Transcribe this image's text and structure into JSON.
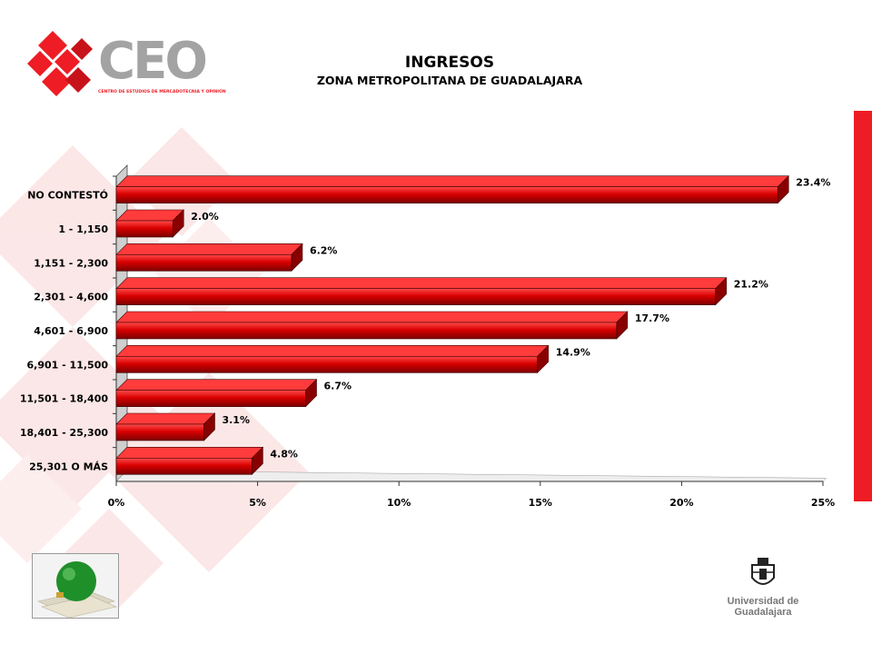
{
  "slide": {
    "title": "INGRESOS",
    "subtitle": "ZONA METROPOLITANA DE GUADALAJARA",
    "logo_letters": "CEO",
    "logo_tagline": "CENTRO DE ESTUDIOS DE MERCADOTECNIA Y OPINIÓN",
    "university": "Universidad de Guadalajara"
  },
  "colors": {
    "bar": "#d90000",
    "bar_top": "#ff3b3b",
    "bar_side": "#8a0000",
    "accent": "#ee1c24",
    "logo_gray": "#9a9a9a"
  },
  "chart_data": {
    "type": "bar",
    "orientation": "horizontal",
    "categories": [
      "NO CONTESTÓ",
      "1 - 1,150",
      "1,151 - 2,300",
      "2,301 - 4,600",
      "4,601 - 6,900",
      "6,901 - 11,500",
      "11,501 - 18,400",
      "18,401 - 25,300",
      "25,301 O MÁS"
    ],
    "values": [
      23.4,
      2.0,
      6.2,
      21.2,
      17.7,
      14.9,
      6.7,
      3.1,
      4.8
    ],
    "value_labels": [
      "23.4%",
      "2.0%",
      "6.2%",
      "21.2%",
      "17.7%",
      "14.9%",
      "6.7%",
      "3.1%",
      "4.8%"
    ],
    "xlim": [
      0,
      25
    ],
    "ticks": [
      0,
      5,
      10,
      15,
      20,
      25
    ],
    "tick_labels": [
      "0%",
      "5%",
      "10%",
      "15%",
      "20%",
      "25%"
    ],
    "grid": false,
    "legend": "none"
  }
}
